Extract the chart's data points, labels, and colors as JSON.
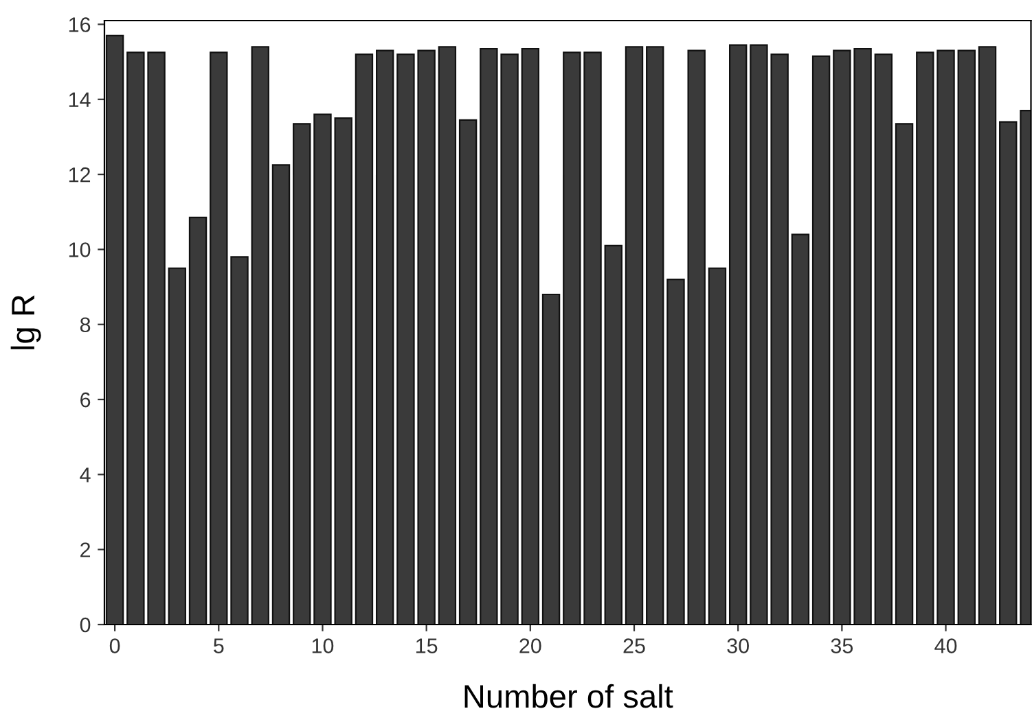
{
  "chart_data": {
    "type": "bar",
    "xlabel": "Number of salt",
    "ylabel": "lg R",
    "x": [
      0,
      1,
      2,
      3,
      4,
      5,
      6,
      7,
      8,
      9,
      10,
      11,
      12,
      13,
      14,
      15,
      16,
      17,
      18,
      19,
      20,
      21,
      22,
      23,
      24,
      25,
      26,
      27,
      28,
      29,
      30,
      31,
      32,
      33,
      34,
      35,
      36,
      37,
      38,
      39,
      40,
      41,
      42,
      43,
      44
    ],
    "values": [
      15.7,
      15.25,
      15.25,
      9.5,
      10.85,
      15.25,
      9.8,
      15.4,
      12.25,
      13.35,
      13.6,
      13.5,
      15.2,
      15.3,
      15.2,
      15.3,
      15.4,
      13.45,
      15.35,
      15.2,
      15.35,
      8.8,
      15.25,
      15.25,
      10.1,
      15.4,
      15.4,
      9.2,
      15.3,
      9.5,
      15.45,
      15.45,
      15.2,
      10.4,
      15.15,
      15.3,
      15.35,
      15.2,
      13.35,
      15.25,
      15.3,
      15.3,
      15.4,
      13.4,
      13.7
    ],
    "color": "#3a3a3a",
    "xlim": [
      -0.5,
      44.1
    ],
    "xticks": [
      0,
      5,
      10,
      15,
      20,
      25,
      30,
      35,
      40
    ],
    "ylim": [
      0,
      16.1
    ],
    "yticks": [
      0,
      2,
      4,
      6,
      8,
      10,
      12,
      14,
      16
    ],
    "grid": false
  }
}
